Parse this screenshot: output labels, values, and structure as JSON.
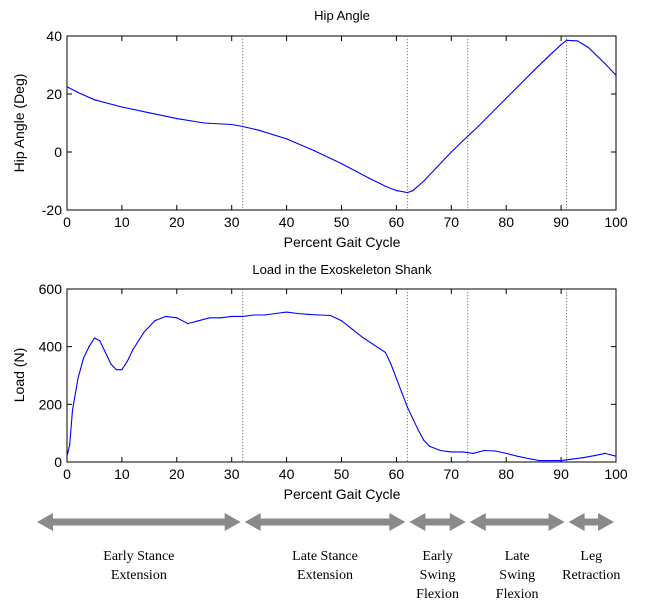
{
  "chart_data": [
    {
      "type": "line",
      "title": "Hip Angle",
      "xlabel": "Percent Gait Cycle",
      "ylabel": "Hip Angle (Deg)",
      "xlim": [
        0,
        100
      ],
      "ylim": [
        -20,
        40
      ],
      "xticks": [
        "0",
        "10",
        "20",
        "30",
        "40",
        "50",
        "60",
        "70",
        "80",
        "90",
        "100"
      ],
      "yticks": [
        "-20",
        "0",
        "20",
        "40"
      ],
      "phase_lines": [
        32,
        62,
        73,
        91
      ],
      "grid": false,
      "series": [
        {
          "color": "#0000ff",
          "x": [
            0,
            2,
            5,
            10,
            15,
            20,
            25,
            30,
            32,
            35,
            40,
            45,
            50,
            55,
            58,
            60,
            62,
            63,
            65,
            70,
            73,
            75,
            80,
            85,
            88,
            90,
            91,
            93,
            95,
            98,
            100
          ],
          "y": [
            22.5,
            20.5,
            18,
            15.5,
            13.5,
            11.5,
            10,
            9.5,
            8.8,
            7.5,
            4.5,
            0.5,
            -4,
            -9,
            -11.8,
            -13.3,
            -14,
            -13.3,
            -10,
            0,
            5.5,
            9,
            18.5,
            28,
            33.5,
            37,
            38.5,
            38.3,
            36,
            30.5,
            26.5
          ]
        }
      ]
    },
    {
      "type": "line",
      "title": "Load in the Exoskeleton Shank",
      "xlabel": "Percent Gait Cycle",
      "ylabel": "Load (N)",
      "xlim": [
        0,
        100
      ],
      "ylim": [
        0,
        600
      ],
      "xticks": [
        "0",
        "10",
        "20",
        "30",
        "40",
        "50",
        "60",
        "70",
        "80",
        "90",
        "100"
      ],
      "yticks": [
        "0",
        "200",
        "400",
        "600"
      ],
      "phase_lines": [
        32,
        62,
        73,
        91
      ],
      "grid": false,
      "series": [
        {
          "color": "#0000ff",
          "x": [
            0,
            0.5,
            1,
            2,
            3,
            4,
            5,
            6,
            7,
            8,
            9,
            10,
            11,
            12,
            14,
            16,
            18,
            20,
            22,
            24,
            26,
            28,
            30,
            32,
            34,
            36,
            38,
            40,
            42,
            44,
            46,
            48,
            50,
            52,
            54,
            56,
            58,
            59,
            60,
            61,
            62,
            63,
            64,
            65,
            66,
            68,
            70,
            72,
            74,
            76,
            78,
            80,
            82,
            84,
            86,
            88,
            90,
            92,
            94,
            96,
            98,
            100
          ],
          "y": [
            20,
            60,
            180,
            290,
            360,
            400,
            430,
            420,
            380,
            340,
            320,
            320,
            350,
            390,
            450,
            490,
            505,
            500,
            480,
            490,
            500,
            500,
            505,
            505,
            510,
            510,
            515,
            520,
            515,
            512,
            510,
            508,
            490,
            460,
            430,
            405,
            380,
            340,
            290,
            240,
            190,
            150,
            110,
            75,
            55,
            40,
            35,
            35,
            30,
            40,
            38,
            30,
            20,
            12,
            5,
            5,
            5,
            10,
            15,
            22,
            30,
            20
          ]
        }
      ]
    }
  ],
  "phases": [
    {
      "from": 0,
      "to": 32,
      "lines": [
        "Early Stance",
        "Extension"
      ]
    },
    {
      "from": 32,
      "to": 62,
      "lines": [
        "Late Stance",
        "Extension"
      ]
    },
    {
      "from": 62,
      "to": 73,
      "lines": [
        "Early",
        "Swing",
        "Flexion"
      ]
    },
    {
      "from": 73,
      "to": 91,
      "lines": [
        "Late",
        "Swing",
        "Flexion"
      ]
    },
    {
      "from": 91,
      "to": 100,
      "lines": [
        "Leg",
        "Retraction"
      ]
    }
  ]
}
